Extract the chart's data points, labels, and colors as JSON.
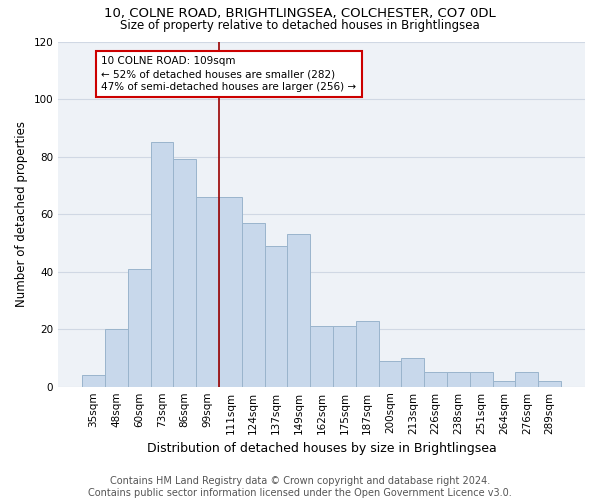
{
  "title1": "10, COLNE ROAD, BRIGHTLINGSEA, COLCHESTER, CO7 0DL",
  "title2": "Size of property relative to detached houses in Brightlingsea",
  "xlabel": "Distribution of detached houses by size in Brightlingsea",
  "ylabel": "Number of detached properties",
  "categories": [
    "35sqm",
    "48sqm",
    "60sqm",
    "73sqm",
    "86sqm",
    "99sqm",
    "111sqm",
    "124sqm",
    "137sqm",
    "149sqm",
    "162sqm",
    "175sqm",
    "187sqm",
    "200sqm",
    "213sqm",
    "226sqm",
    "238sqm",
    "251sqm",
    "264sqm",
    "276sqm",
    "289sqm"
  ],
  "values": [
    4,
    20,
    41,
    85,
    79,
    66,
    66,
    57,
    49,
    53,
    21,
    21,
    23,
    9,
    10,
    5,
    5,
    5,
    2,
    5,
    2
  ],
  "bar_color": "#c8d8eb",
  "bar_edge_color": "#9ab4cc",
  "vline_pos": 5.5,
  "vline_color": "#990000",
  "annotation_text": "10 COLNE ROAD: 109sqm\n← 52% of detached houses are smaller (282)\n47% of semi-detached houses are larger (256) →",
  "annotation_box_color": "white",
  "annotation_box_edge_color": "#cc0000",
  "footer": "Contains HM Land Registry data © Crown copyright and database right 2024.\nContains public sector information licensed under the Open Government Licence v3.0.",
  "ylim": [
    0,
    120
  ],
  "yticks": [
    0,
    20,
    40,
    60,
    80,
    100,
    120
  ],
  "grid_color": "#d0d8e4",
  "bg_color": "#eef2f7",
  "title_fontsize": 9.5,
  "subtitle_fontsize": 8.5,
  "tick_fontsize": 7.5,
  "xlabel_fontsize": 9,
  "ylabel_fontsize": 8.5,
  "footer_fontsize": 7,
  "annot_fontsize": 7.5
}
